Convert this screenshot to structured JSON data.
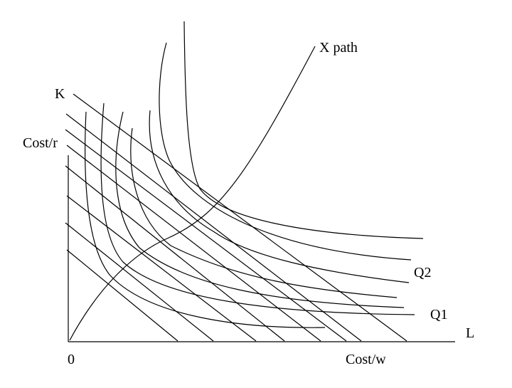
{
  "labels": {
    "x_path": "X path",
    "k": "K",
    "cost_r": "Cost/r",
    "q2": "Q2",
    "q1": "Q1",
    "l": "L",
    "origin": "0",
    "cost_w": "Cost/w"
  },
  "colors": {
    "ink": "#000000",
    "background": "#ffffff"
  }
}
